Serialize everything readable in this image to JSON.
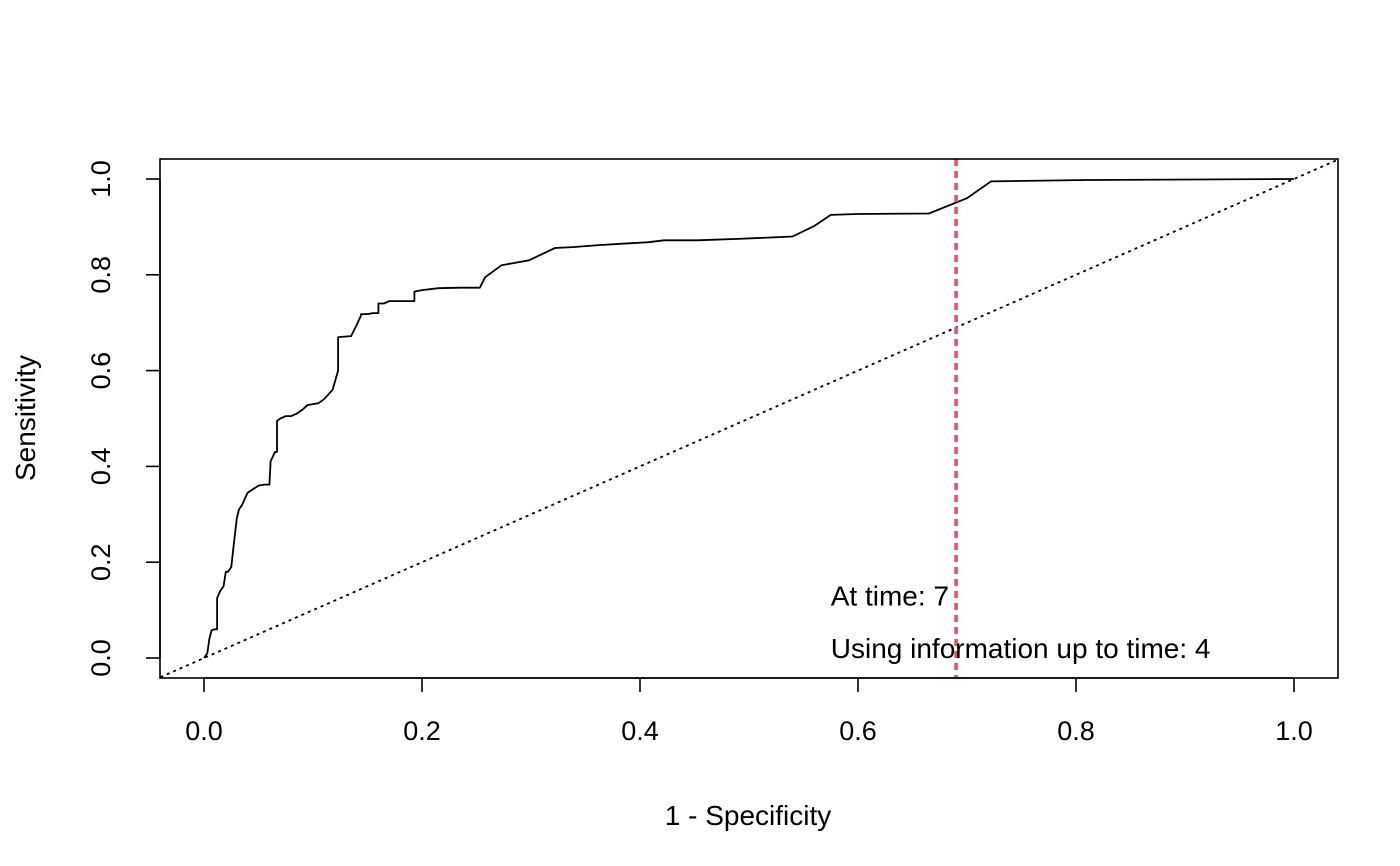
{
  "chart_data": {
    "type": "line",
    "title": "",
    "xlabel": "1 - Specificity",
    "ylabel": "Sensitivity",
    "xlim": [
      0,
      1
    ],
    "ylim": [
      0,
      1
    ],
    "x_ticks": [
      "0.0",
      "0.2",
      "0.4",
      "0.6",
      "0.8",
      "1.0"
    ],
    "y_ticks": [
      "0.0",
      "0.2",
      "0.4",
      "0.6",
      "0.8",
      "1.0"
    ],
    "grid": false,
    "legend": "none",
    "series": [
      {
        "style": "solid",
        "color": "#000000",
        "x": [
          0.0,
          0.003,
          0.005,
          0.007,
          0.01,
          0.012,
          0.012,
          0.015,
          0.018,
          0.02,
          0.022,
          0.025,
          0.027,
          0.03,
          0.032,
          0.035,
          0.037,
          0.04,
          0.04,
          0.05,
          0.055,
          0.06,
          0.061,
          0.061,
          0.065,
          0.067,
          0.067,
          0.07,
          0.075,
          0.08,
          0.085,
          0.09,
          0.095,
          0.1,
          0.105,
          0.11,
          0.118,
          0.123,
          0.123,
          0.135,
          0.14,
          0.144,
          0.144,
          0.15,
          0.155,
          0.16,
          0.16,
          0.165,
          0.17,
          0.18,
          0.185,
          0.193,
          0.193,
          0.2,
          0.215,
          0.235,
          0.253,
          0.258,
          0.273,
          0.298,
          0.322,
          0.34,
          0.362,
          0.392,
          0.408,
          0.422,
          0.452,
          0.49,
          0.54,
          0.56,
          0.575,
          0.6,
          0.665,
          0.7,
          0.722,
          0.81,
          1.0
        ],
        "y": [
          0.0,
          0.01,
          0.04,
          0.058,
          0.06,
          0.06,
          0.125,
          0.14,
          0.15,
          0.18,
          0.18,
          0.19,
          0.23,
          0.29,
          0.31,
          0.32,
          0.33,
          0.345,
          0.345,
          0.36,
          0.362,
          0.362,
          0.405,
          0.41,
          0.43,
          0.43,
          0.495,
          0.5,
          0.505,
          0.505,
          0.51,
          0.518,
          0.528,
          0.53,
          0.532,
          0.54,
          0.56,
          0.6,
          0.67,
          0.672,
          0.695,
          0.715,
          0.718,
          0.718,
          0.72,
          0.72,
          0.74,
          0.74,
          0.745,
          0.745,
          0.745,
          0.745,
          0.765,
          0.768,
          0.772,
          0.773,
          0.773,
          0.795,
          0.82,
          0.83,
          0.856,
          0.858,
          0.862,
          0.866,
          0.868,
          0.872,
          0.872,
          0.875,
          0.88,
          0.902,
          0.925,
          0.927,
          0.928,
          0.96,
          0.995,
          0.998,
          1.0
        ]
      },
      {
        "style": "dotted",
        "color": "#000000",
        "x": [
          -0.04,
          1.04
        ],
        "y": [
          -0.04,
          1.04
        ]
      }
    ],
    "vline": {
      "x": 0.69,
      "color": "#DF536B",
      "style": "dashed"
    },
    "annotations": [
      {
        "text": "At time: 7",
        "x": 0.575,
        "y": 0.11
      },
      {
        "text": "Using information up to time: 4",
        "x": 0.575,
        "y": 0.0
      }
    ]
  }
}
